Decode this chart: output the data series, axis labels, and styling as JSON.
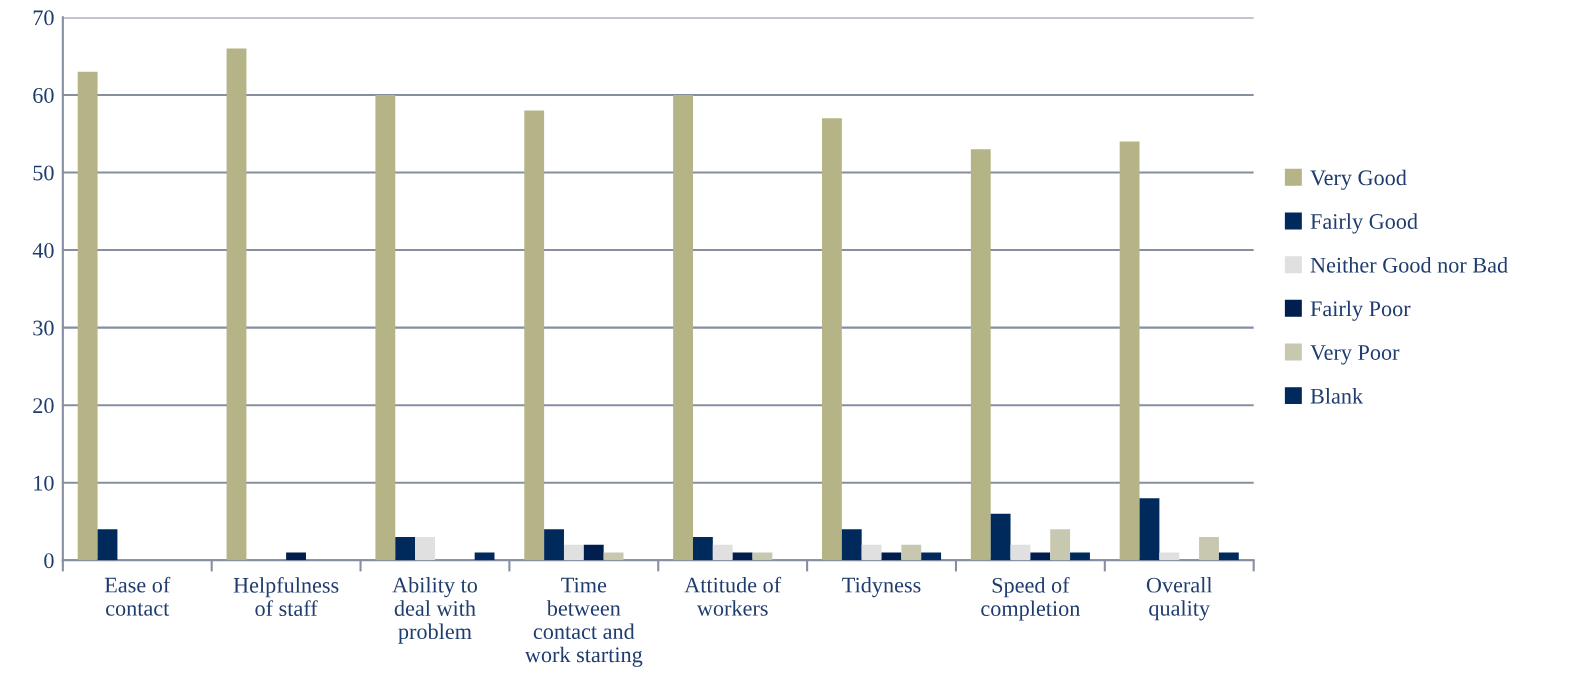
{
  "chart_data": {
    "type": "bar",
    "categories": [
      "Ease of\ncontact",
      "Helpfulness\nof staff",
      "Ability to\ndeal with\nproblem",
      "Time\nbetween\ncontact and\nwork starting",
      "Attitude of\nworkers",
      "Tidyness",
      "Speed of\ncompletion",
      "Overall\nquality"
    ],
    "series": [
      {
        "name": "Very Good",
        "color": "#b5b486",
        "values": [
          63,
          66,
          60,
          58,
          60,
          57,
          53,
          54
        ]
      },
      {
        "name": "Fairly Good",
        "color": "#002a5c",
        "values": [
          4,
          0,
          3,
          4,
          3,
          4,
          6,
          8
        ]
      },
      {
        "name": "Neither Good nor Bad",
        "color": "#e0e0e0",
        "values": [
          0,
          0,
          3,
          2,
          2,
          2,
          2,
          1
        ]
      },
      {
        "name": "Fairly Poor",
        "color": "#001f4f",
        "values": [
          0,
          1,
          0,
          2,
          1,
          1,
          1,
          0
        ]
      },
      {
        "name": "Very Poor",
        "color": "#c8c8b0",
        "values": [
          0,
          0,
          0,
          1,
          1,
          2,
          4,
          3
        ]
      },
      {
        "name": "Blank",
        "color": "#002a5c",
        "values": [
          0,
          0,
          1,
          0,
          0,
          1,
          1,
          1
        ]
      }
    ],
    "ylim": [
      0,
      70
    ],
    "yticks": [
      0,
      10,
      20,
      30,
      40,
      50,
      60,
      70
    ],
    "grid": "y",
    "legend": "right"
  }
}
